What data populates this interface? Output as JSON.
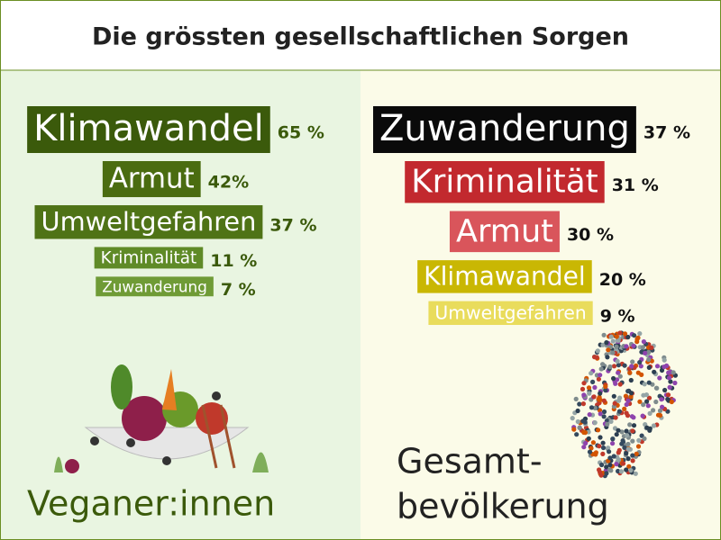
{
  "title": "Die grössten gesellschaftlichen Sorgen",
  "chart_data": [
    {
      "type": "word-bar",
      "title_lines": [
        "Veganer:innen"
      ],
      "categories": [
        "Klimawandel",
        "Armut",
        "Umweltgefahren",
        "Kriminalität",
        "Zuwanderung"
      ],
      "values": [
        65,
        42,
        37,
        11,
        7
      ],
      "value_labels": [
        "65 %",
        "42%",
        "37 %",
        "11 %",
        "7 %"
      ],
      "colors": [
        "#3b5a0b",
        "#4a6c10",
        "#4f7316",
        "#5f8a27",
        "#6f9b36"
      ],
      "label_color": "#3b5a0b"
    },
    {
      "type": "word-bar",
      "title_lines": [
        "Gesamt-",
        "bevölkerung"
      ],
      "categories": [
        "Zuwanderung",
        "Kriminalität",
        "Armut",
        "Klimawandel",
        "Umweltgefahren"
      ],
      "values": [
        37,
        31,
        30,
        20,
        9
      ],
      "value_labels": [
        "37 %",
        "31 %",
        "30 %",
        "20 %",
        "9 %"
      ],
      "colors": [
        "#0a0a0a",
        "#c2292e",
        "#d9555b",
        "#c9b703",
        "#e9dc5c"
      ],
      "label_color": "#111111"
    }
  ]
}
